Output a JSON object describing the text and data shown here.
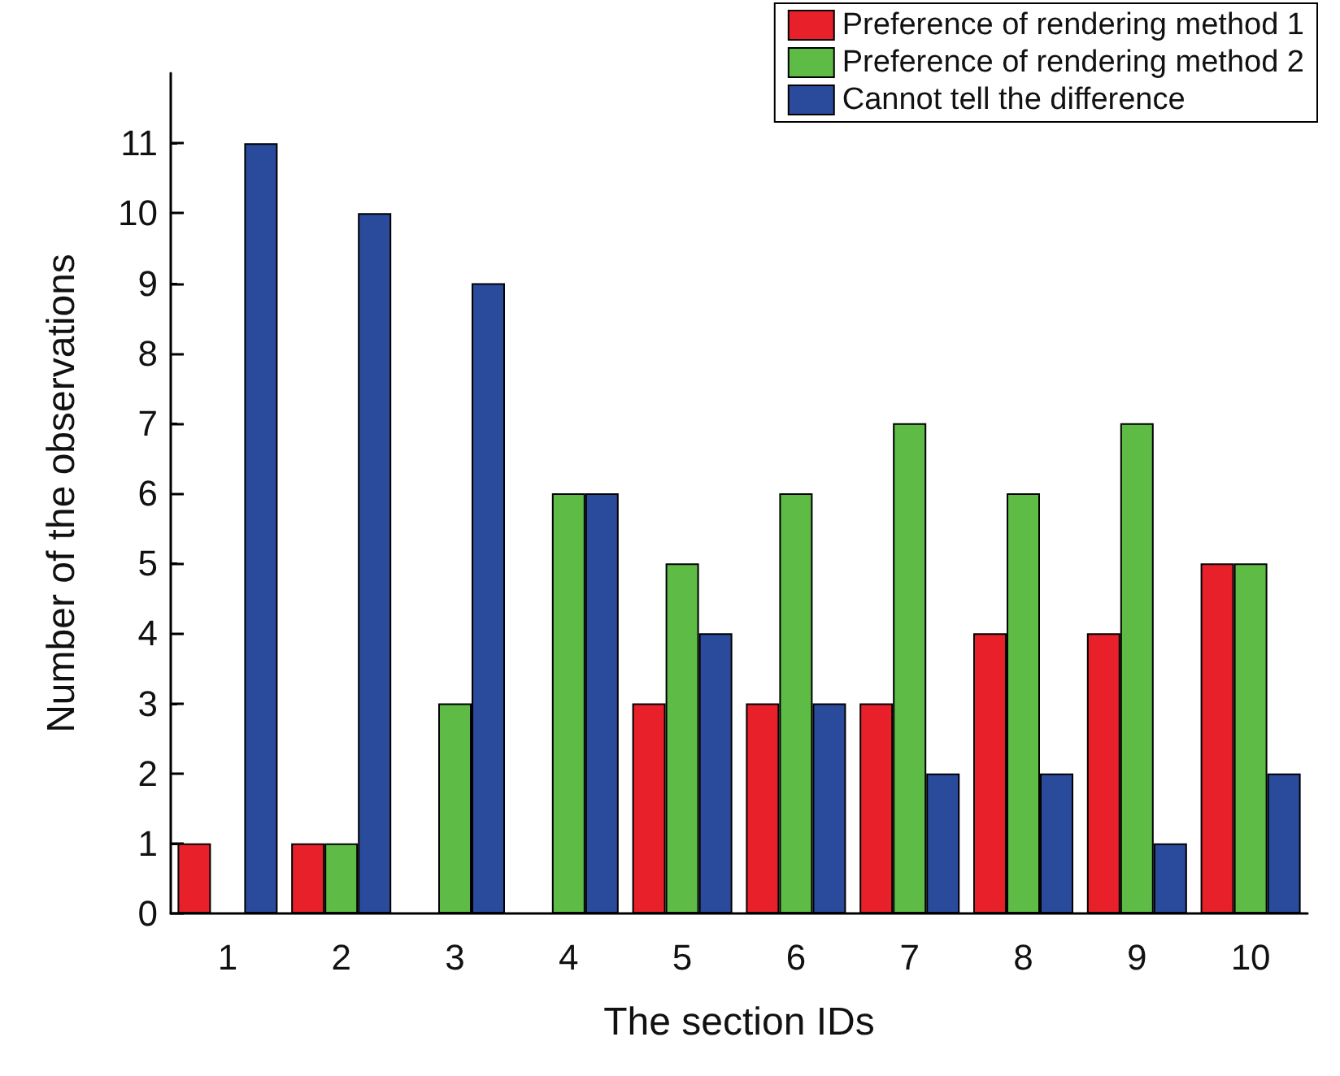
{
  "chart_data": {
    "type": "bar",
    "xlabel": "The section IDs",
    "ylabel": "Number of the observations",
    "categories": [
      "1",
      "2",
      "3",
      "4",
      "5",
      "6",
      "7",
      "8",
      "9",
      "10"
    ],
    "series": [
      {
        "name": "Preference of rendering method 1",
        "color": "#e8202a",
        "values": [
          1,
          1,
          0,
          0,
          3,
          3,
          3,
          4,
          4,
          5
        ]
      },
      {
        "name": "Preference of rendering method 2",
        "color": "#5dbb46",
        "values": [
          0,
          1,
          3,
          6,
          5,
          6,
          7,
          6,
          7,
          5
        ]
      },
      {
        "name": "Cannot tell the difference",
        "color": "#2a4a9c",
        "values": [
          11,
          10,
          9,
          6,
          4,
          3,
          2,
          2,
          1,
          2
        ]
      }
    ],
    "ylim": [
      0,
      12
    ],
    "yticks": [
      0,
      1,
      2,
      3,
      4,
      5,
      6,
      7,
      8,
      9,
      10,
      11
    ],
    "grid": false,
    "legend": "top right"
  }
}
